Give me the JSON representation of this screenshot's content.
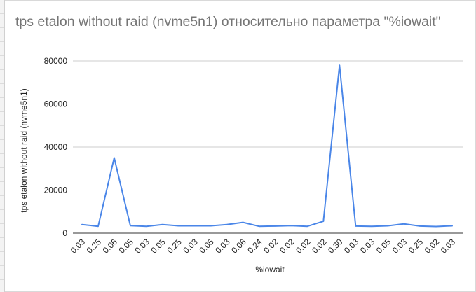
{
  "chart_data": {
    "type": "line",
    "title": "tps etalon without raid (nvme5n1) относительно параметра \"%iowait\"",
    "xlabel": "%iowait",
    "ylabel": "tps etalon without raid (nvme5n1)",
    "categories": [
      "0.03",
      "0.25",
      "0.06",
      "0.05",
      "0.03",
      "0.05",
      "0.25",
      "0.03",
      "0.05",
      "0.03",
      "0.06",
      "0.24",
      "0.02",
      "0.02",
      "0.02",
      "0.02",
      "0.30",
      "0.03",
      "0.03",
      "0.05",
      "0.03",
      "0.25",
      "0.02",
      "0.03"
    ],
    "series": [
      {
        "values": [
          4000,
          3200,
          35000,
          3500,
          3200,
          4000,
          3400,
          3400,
          3400,
          4000,
          5000,
          3200,
          3300,
          3500,
          3200,
          5500,
          78000,
          3300,
          3200,
          3400,
          4300,
          3300,
          3100,
          3400
        ],
        "color": "#4a86e8"
      }
    ],
    "ylim": [
      0,
      80000
    ],
    "yticks": [
      "0",
      "20000",
      "40000",
      "60000",
      "80000"
    ],
    "grid": true,
    "legend": "none"
  }
}
